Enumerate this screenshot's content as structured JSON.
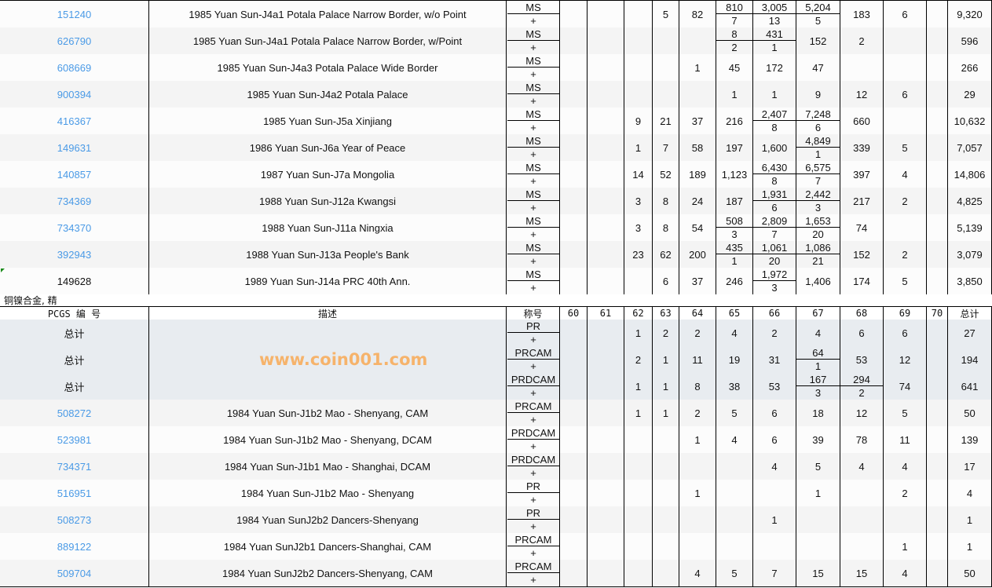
{
  "columns": [
    "PCGS 编 号",
    "描述",
    "称号",
    "60",
    "61",
    "62",
    "63",
    "64",
    "65",
    "66",
    "67",
    "68",
    "69",
    "70",
    "总计"
  ],
  "section1_rows": [
    {
      "id": "151240",
      "desc": "1985 Yuan Sun-J4a1 Potala Palace Narrow Border, w/o Point",
      "grade": [
        "MS",
        "+"
      ],
      "link": true,
      "cells": [
        "",
        "",
        "",
        "5",
        "82",
        [
          "810",
          "7"
        ],
        [
          "3,005",
          "13"
        ],
        [
          "5,204",
          "5"
        ],
        "183",
        "6",
        "",
        "9,320"
      ]
    },
    {
      "id": "626790",
      "desc": "1985 Yuan Sun-J4a1 Potala Palace Narrow Border, w/Point",
      "grade": [
        "MS",
        "+"
      ],
      "link": true,
      "cells": [
        "",
        "",
        "",
        "",
        "",
        [
          "8",
          "2"
        ],
        [
          "431",
          "1"
        ],
        "152",
        "2",
        "",
        "",
        "596"
      ]
    },
    {
      "id": "608669",
      "desc": "1985 Yuan Sun-J4a3 Potala Palace Wide Border",
      "grade": [
        "MS",
        "+"
      ],
      "link": true,
      "cells": [
        "",
        "",
        "",
        "",
        "1",
        "45",
        "172",
        "47",
        "",
        "",
        "",
        "266"
      ]
    },
    {
      "id": "900394",
      "desc": "1985 Yuan Sun-J4a2 Potala Palace",
      "grade": [
        "MS",
        "+"
      ],
      "link": true,
      "cells": [
        "",
        "",
        "",
        "",
        "",
        "1",
        "1",
        "9",
        "12",
        "6",
        "",
        "29"
      ]
    },
    {
      "id": "416367",
      "desc": "1985 Yuan Sun-J5a Xinjiang",
      "grade": [
        "MS",
        "+"
      ],
      "link": true,
      "cells": [
        "",
        "",
        "9",
        "21",
        "37",
        "216",
        [
          "2,407",
          "8"
        ],
        [
          "7,248",
          "6"
        ],
        "660",
        "",
        "",
        "10,632"
      ]
    },
    {
      "id": "149631",
      "desc": "1986 Yuan Sun-J6a Year of Peace",
      "grade": [
        "MS",
        "+"
      ],
      "link": true,
      "cells": [
        "",
        "",
        "1",
        "7",
        "58",
        "197",
        "1,600",
        [
          "4,849",
          "1"
        ],
        "339",
        "5",
        "",
        "7,057"
      ]
    },
    {
      "id": "140857",
      "desc": "1987 Yuan Sun-J7a Mongolia",
      "grade": [
        "MS",
        "+"
      ],
      "link": true,
      "cells": [
        "",
        "",
        "14",
        "52",
        "189",
        "1,123",
        [
          "6,430",
          "8"
        ],
        [
          "6,575",
          "7"
        ],
        "397",
        "4",
        "",
        "14,806"
      ]
    },
    {
      "id": "734369",
      "desc": "1988 Yuan Sun-J12a Kwangsi",
      "grade": [
        "MS",
        "+"
      ],
      "link": true,
      "cells": [
        "",
        "",
        "3",
        "8",
        "24",
        "187",
        [
          "1,931",
          "6"
        ],
        [
          "2,442",
          "3"
        ],
        "217",
        "2",
        "",
        "4,825"
      ]
    },
    {
      "id": "734370",
      "desc": "1988 Yuan Sun-J11a Ningxia",
      "grade": [
        "MS",
        "+"
      ],
      "link": true,
      "cells": [
        "",
        "",
        "3",
        "8",
        "54",
        [
          "508",
          "3"
        ],
        [
          "2,809",
          "7"
        ],
        [
          "1,653",
          "20"
        ],
        "74",
        "",
        "",
        "5,139"
      ]
    },
    {
      "id": "392943",
      "desc": "1988 Yuan Sun-J13a People's Bank",
      "grade": [
        "MS",
        "+"
      ],
      "link": true,
      "cells": [
        "",
        "",
        "23",
        "62",
        "200",
        [
          "435",
          "1"
        ],
        [
          "1,061",
          "20"
        ],
        [
          "1,086",
          "21"
        ],
        "152",
        "2",
        "",
        "3,079"
      ]
    },
    {
      "id": "149628",
      "desc": "1989 Yuan Sun-J14a PRC 40th Ann.",
      "grade": [
        "MS",
        "+"
      ],
      "link": false,
      "cells": [
        "",
        "",
        "",
        "6",
        "37",
        "246",
        [
          "1,972",
          "3"
        ],
        "1,406",
        "174",
        "5",
        "",
        "3,850"
      ]
    }
  ],
  "section2_title": "铜镍合金, 精",
  "section2_rows": [
    {
      "id": "总计",
      "desc": "",
      "grade": [
        "PR",
        "+"
      ],
      "total": true,
      "cells": [
        "",
        "",
        "1",
        "2",
        "2",
        "4",
        "2",
        "4",
        "6",
        "6",
        "",
        "27"
      ]
    },
    {
      "id": "总计",
      "desc": "",
      "grade": [
        "PRCAM",
        "+"
      ],
      "total": true,
      "cells": [
        "",
        "",
        "2",
        "1",
        "11",
        "19",
        "31",
        [
          "64",
          "1"
        ],
        "53",
        "12",
        "",
        "194"
      ]
    },
    {
      "id": "总计",
      "desc": "",
      "grade": [
        "PRDCAM",
        "+"
      ],
      "total": true,
      "cells": [
        "",
        "",
        "1",
        "1",
        "8",
        "38",
        "53",
        [
          "167",
          "3"
        ],
        [
          "294",
          "2"
        ],
        "74",
        "",
        "641"
      ]
    },
    {
      "id": "508272",
      "desc": "1984 Yuan Sun-J1b2 Mao - Shenyang, CAM",
      "grade": [
        "PRCAM",
        "+"
      ],
      "link": true,
      "cells": [
        "",
        "",
        "1",
        "1",
        "2",
        "5",
        "6",
        "18",
        "12",
        "5",
        "",
        "50"
      ]
    },
    {
      "id": "523981",
      "desc": "1984 Yuan Sun-J1b2 Mao - Shenyang, DCAM",
      "grade": [
        "PRDCAM",
        "+"
      ],
      "link": true,
      "cells": [
        "",
        "",
        "",
        "",
        "1",
        "4",
        "6",
        "39",
        "78",
        "11",
        "",
        "139"
      ]
    },
    {
      "id": "734371",
      "desc": "1984 Yuan Sun-J1b1 Mao - Shanghai, DCAM",
      "grade": [
        "PRDCAM",
        "+"
      ],
      "link": true,
      "cells": [
        "",
        "",
        "",
        "",
        "",
        "",
        "4",
        "5",
        "4",
        "4",
        "",
        "17"
      ]
    },
    {
      "id": "516951",
      "desc": "1984 Yuan Sun-J1b2 Mao - Shenyang",
      "grade": [
        "PR",
        "+"
      ],
      "link": true,
      "cells": [
        "",
        "",
        "",
        "",
        "1",
        "",
        "",
        "1",
        "",
        "2",
        "",
        "4"
      ]
    },
    {
      "id": "508273",
      "desc": "1984 Yuan SunJ2b2 Dancers-Shenyang",
      "grade": [
        "PR",
        "+"
      ],
      "link": true,
      "cells": [
        "",
        "",
        "",
        "",
        "",
        "",
        "1",
        "",
        "",
        "",
        "",
        "1"
      ]
    },
    {
      "id": "889122",
      "desc": "1984 Yuan SunJ2b1 Dancers-Shanghai, CAM",
      "grade": [
        "PRCAM",
        "+"
      ],
      "link": true,
      "cells": [
        "",
        "",
        "",
        "",
        "",
        "",
        "",
        "",
        "",
        "1",
        "",
        "1"
      ]
    },
    {
      "id": "509704",
      "desc": "1984 Yuan SunJ2b2 Dancers-Shenyang, CAM",
      "grade": [
        "PRCAM",
        "+"
      ],
      "link": true,
      "cells": [
        "",
        "",
        "",
        "",
        "4",
        "5",
        "7",
        "15",
        "15",
        "4",
        "",
        "50"
      ]
    }
  ],
  "watermark": "www.coin001.com",
  "colors": {
    "link": "#4a9ae6",
    "total_row": "#e8ecf0",
    "watermark": "#f6b36b"
  }
}
